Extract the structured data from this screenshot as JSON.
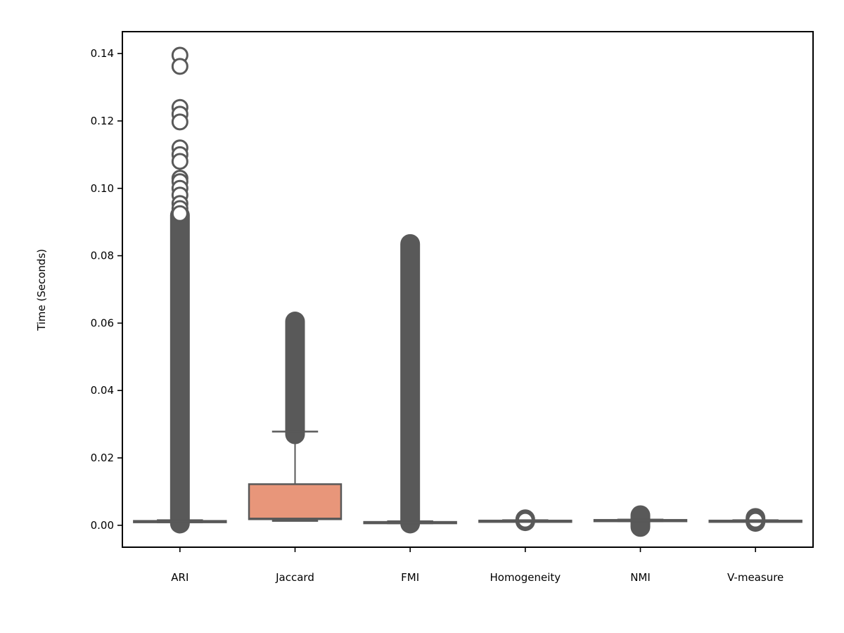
{
  "chart_data": {
    "type": "box",
    "title": "",
    "xlabel": "",
    "ylabel": "Time (Seconds)",
    "ylim": [
      -0.0065,
      0.1465
    ],
    "yticks": [
      0.0,
      0.02,
      0.04,
      0.06,
      0.08,
      0.1,
      0.12,
      0.14
    ],
    "ytick_labels": [
      "0.00",
      "0.02",
      "0.04",
      "0.06",
      "0.08",
      "0.10",
      "0.12",
      "0.14"
    ],
    "grid": false,
    "legend": "none",
    "box_color": "#e8967a",
    "line_color": "#595959",
    "categories": [
      "ARI",
      "Jaccard",
      "FMI",
      "Homogeneity",
      "NMI",
      "V-measure"
    ],
    "boxes": [
      {
        "label": "ARI",
        "whisker_low": 0.0009,
        "q1": 0.001,
        "median": 0.0011,
        "q3": 0.0013,
        "whisker_high": 0.0015,
        "outlier_band": [
          0.0005,
          0.092
        ],
        "outliers": [
          0.1395,
          0.1362,
          0.124,
          0.122,
          0.1197,
          0.112,
          0.11,
          0.108,
          0.103,
          0.102,
          0.1,
          0.098,
          0.0955,
          0.094,
          0.0925
        ]
      },
      {
        "label": "Jaccard",
        "whisker_low": 0.0013,
        "q1": 0.0018,
        "median": 0.002,
        "q3": 0.0122,
        "whisker_high": 0.0278,
        "outlier_band": [
          0.027,
          0.0605
        ],
        "outliers": []
      },
      {
        "label": "FMI",
        "whisker_low": 0.0006,
        "q1": 0.0007,
        "median": 0.0008,
        "q3": 0.001,
        "whisker_high": 0.0012,
        "outlier_band": [
          0.0005,
          0.0835
        ],
        "outliers": []
      },
      {
        "label": "Homogeneity",
        "whisker_low": 0.0011,
        "q1": 0.0012,
        "median": 0.0013,
        "q3": 0.0014,
        "whisker_high": 0.0015,
        "outlier_band": [
          0.0012,
          0.0018
        ],
        "outliers": [
          0.0015
        ]
      },
      {
        "label": "NMI",
        "whisker_low": 0.0012,
        "q1": 0.0013,
        "median": 0.0014,
        "q3": 0.0016,
        "whisker_high": 0.0017,
        "outlier_band": [
          -0.0005,
          0.003
        ],
        "outliers": []
      },
      {
        "label": "V-measure",
        "whisker_low": 0.0011,
        "q1": 0.0012,
        "median": 0.0013,
        "q3": 0.0014,
        "whisker_high": 0.0015,
        "outlier_band": [
          0.001,
          0.0022
        ],
        "outliers": [
          0.0015
        ]
      }
    ]
  }
}
